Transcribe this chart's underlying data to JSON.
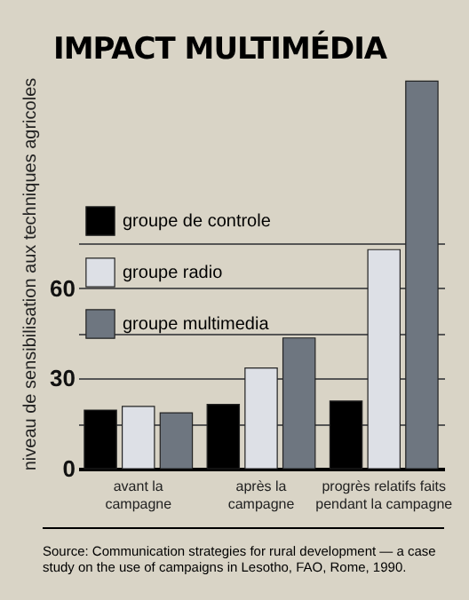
{
  "chart_data": {
    "type": "bar",
    "title": "IMPACT MULTIMÉDIA",
    "ylabel": "niveau de sensibilisation aux techniques agricoles",
    "categories": [
      "avant la\ncampagne",
      "après la\ncampagne",
      "progrès relatifs faits\npendant la campagne"
    ],
    "series": [
      {
        "name": "groupe de controle",
        "color": "#000000",
        "values": [
          19.5,
          21.4,
          22.5
        ]
      },
      {
        "name": "groupe radio",
        "color": "#dde0e6",
        "values": [
          20.7,
          33.5,
          72.9
        ]
      },
      {
        "name": "groupe multimedia",
        "color": "#6e7680",
        "values": [
          18.6,
          43.5,
          129
        ]
      }
    ],
    "ylim": [
      0,
      130
    ],
    "yticks": [
      0,
      {
        "value": 15,
        "label": null
      },
      30,
      {
        "value": 45,
        "label": null
      },
      60,
      {
        "value": 75,
        "label": null
      }
    ],
    "grid": "y",
    "legend": "top left",
    "annotations": [
      "Source: Communication strategies for rural development — a case study on the use of campaigns in Lesotho, FAO, Rome, 1990."
    ]
  }
}
